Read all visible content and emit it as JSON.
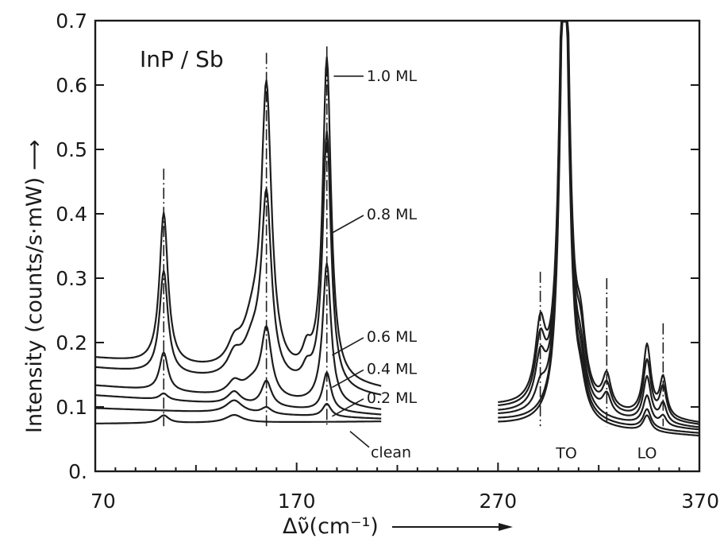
{
  "chart_data": {
    "type": "line",
    "sample_label": "InP / Sb",
    "ylabel": "Intensity (counts/s·mW) ⟶",
    "xlabel": "Δν̃(cm⁻¹)",
    "x_ticks": [
      70,
      170,
      270,
      370
    ],
    "y_ticks": [
      "0.",
      "0.1",
      "0.2",
      "0.3",
      "0.4",
      "0.5",
      "0.6",
      "0.7"
    ],
    "xlim": [
      70,
      370
    ],
    "ylim": [
      0,
      0.7
    ],
    "gap_range": [
      212,
      270
    ],
    "peak_lines": [
      {
        "x": 104,
        "top": 0.47
      },
      {
        "x": 155,
        "top": 0.65
      },
      {
        "x": 185,
        "top": 0.66
      },
      {
        "x": 291,
        "top": 0.31
      },
      {
        "x": 324,
        "top": 0.3
      },
      {
        "x": 352,
        "top": 0.23
      }
    ],
    "mode_labels": [
      {
        "text": "TO",
        "x": 304,
        "y": 0.03
      },
      {
        "text": "LO",
        "x": 344,
        "y": 0.03
      }
    ],
    "series": [
      {
        "name": "1.0 ML",
        "base": 0.175,
        "slope": -0.00035,
        "baseR": 0.098,
        "slopeR": -0.00025,
        "peaks": [
          [
            104,
            0.235,
            2.5
          ],
          [
            139,
            0.03,
            4
          ],
          [
            148,
            0.06,
            6
          ],
          [
            155,
            0.43,
            3
          ],
          [
            175,
            0.03,
            2.5
          ],
          [
            185,
            0.5,
            2.5
          ],
          [
            291,
            0.11,
            3
          ],
          [
            303,
            0.9,
            2.6
          ],
          [
            311,
            0.09,
            3
          ],
          [
            324,
            0.05,
            2.5
          ],
          [
            344,
            0.11,
            2.3
          ],
          [
            352,
            0.06,
            2
          ]
        ]
      },
      {
        "name": "0.8 ML",
        "base": 0.16,
        "slope": -0.00033,
        "baseR": 0.094,
        "slopeR": -0.00024,
        "peaks": [
          [
            104,
            0.16,
            2.5
          ],
          [
            139,
            0.03,
            4
          ],
          [
            148,
            0.05,
            6
          ],
          [
            155,
            0.28,
            3
          ],
          [
            175,
            0.02,
            2.5
          ],
          [
            185,
            0.4,
            2.5
          ],
          [
            291,
            0.09,
            3
          ],
          [
            303,
            0.88,
            2.6
          ],
          [
            311,
            0.08,
            3
          ],
          [
            324,
            0.04,
            2.5
          ],
          [
            344,
            0.09,
            2.3
          ],
          [
            352,
            0.05,
            2
          ]
        ]
      },
      {
        "name": "0.6 ML",
        "base": 0.133,
        "slope": -0.00028,
        "baseR": 0.088,
        "slopeR": -0.00022,
        "peaks": [
          [
            104,
            0.06,
            2.5
          ],
          [
            139,
            0.02,
            4
          ],
          [
            148,
            0.02,
            6
          ],
          [
            155,
            0.105,
            3
          ],
          [
            185,
            0.22,
            2.5
          ],
          [
            291,
            0.07,
            3
          ],
          [
            303,
            0.86,
            2.6
          ],
          [
            311,
            0.06,
            3
          ],
          [
            324,
            0.03,
            2.5
          ],
          [
            344,
            0.07,
            2.3
          ],
          [
            352,
            0.03,
            2
          ]
        ]
      },
      {
        "name": "0.4 ML",
        "base": 0.118,
        "slope": -0.00022,
        "baseR": 0.084,
        "slopeR": -0.00021,
        "peaks": [
          [
            104,
            0.01,
            2.5
          ],
          [
            139,
            0.02,
            4
          ],
          [
            155,
            0.04,
            3
          ],
          [
            185,
            0.06,
            2.5
          ],
          [
            291,
            0.03,
            3
          ],
          [
            303,
            0.84,
            2.6
          ],
          [
            311,
            0.05,
            3
          ],
          [
            344,
            0.045,
            2.3
          ],
          [
            352,
            0.015,
            2
          ]
        ]
      },
      {
        "name": "0.2 ML",
        "base": 0.098,
        "slope": -0.00012,
        "baseR": 0.078,
        "slopeR": -0.0002,
        "peaks": [
          [
            139,
            0.02,
            5
          ],
          [
            155,
            0.01,
            3
          ],
          [
            185,
            0.02,
            2.5
          ],
          [
            303,
            0.82,
            2.6
          ],
          [
            311,
            0.04,
            3
          ],
          [
            344,
            0.03,
            2.3
          ]
        ]
      },
      {
        "name": "clean",
        "base": 0.074,
        "slope": 2e-05,
        "baseR": 0.072,
        "slopeR": -0.00018,
        "peaks": [
          [
            104,
            0.012,
            3
          ],
          [
            139,
            0.012,
            5
          ],
          [
            303,
            0.8,
            2.6
          ],
          [
            311,
            0.035,
            3
          ],
          [
            344,
            0.025,
            2.3
          ]
        ]
      }
    ],
    "labels": [
      {
        "text": "1.0 ML",
        "x": 204,
        "y": 0.615
      },
      {
        "text": "0.8 ML",
        "x": 204,
        "y": 0.4
      },
      {
        "text": "0.6 ML",
        "x": 204,
        "y": 0.21
      },
      {
        "text": "0.4 ML",
        "x": 204,
        "y": 0.16
      },
      {
        "text": "0.2 ML",
        "x": 204,
        "y": 0.115
      },
      {
        "text": "clean",
        "x": 206,
        "y": 0.03
      }
    ],
    "grid": false
  }
}
